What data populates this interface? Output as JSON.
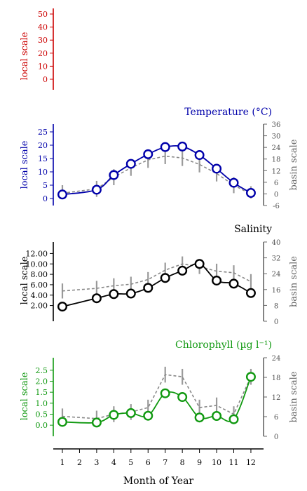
{
  "chart_data": {
    "type": "line",
    "xlabel": "Month of Year",
    "x_ticks": [
      "1",
      "2",
      "3",
      "4",
      "5",
      "6",
      "7",
      "8",
      "9",
      "10",
      "11",
      "12"
    ],
    "y_axis_left_label": "local scale",
    "y_axis_right_label": "basin scale",
    "panels": [
      {
        "id": "p1",
        "title": "",
        "color": "#cc0000",
        "left_ylim": [
          0,
          50
        ],
        "left_ticks": [
          "0",
          "10",
          "20",
          "30",
          "40",
          "50"
        ],
        "right_axis": false,
        "series": []
      },
      {
        "id": "temperature",
        "title": "Temperature (°C)",
        "color": "#0000aa",
        "left_ylim": [
          0,
          25
        ],
        "left_ticks": [
          "0",
          "5",
          "10",
          "15",
          "20",
          "25"
        ],
        "right_ylim": [
          -6,
          36
        ],
        "right_ticks": [
          "-6",
          "0",
          "6",
          "12",
          "18",
          "24",
          "30",
          "36"
        ],
        "series": [
          {
            "x": [
              1,
              3,
              4,
              5,
              6,
              7,
              8,
              9,
              10,
              11,
              12
            ],
            "local": [
              1.5,
              3.3,
              8.8,
              13.0,
              16.6,
              19.3,
              19.5,
              16.3,
              11.2,
              5.9,
              2.1
            ],
            "basin": [
              2.0,
              3.6,
              8.0,
              11.5,
              14.5,
              15.9,
              15.2,
              12.8,
              9.4,
              5.0,
              1.6
            ]
          }
        ]
      },
      {
        "id": "salinity",
        "title": "Salinity",
        "color": "#000000",
        "left_ylim": [
          1,
          13
        ],
        "left_ticks": [
          "2.00",
          "4.00",
          "6.00",
          "8.00",
          "10.00",
          "12.00"
        ],
        "right_ylim": [
          0,
          40
        ],
        "right_ticks": [
          "0",
          "8",
          "16",
          "24",
          "32",
          "40"
        ],
        "series": [
          {
            "x": [
              1,
              3,
              4,
              5,
              6,
              7,
              8,
              9,
              10,
              11,
              12
            ],
            "local": [
              1.8,
              3.4,
              4.2,
              4.3,
              5.4,
              7.3,
              8.7,
              10.0,
              6.8,
              6.2,
              4.4
            ],
            "basin": [
              4.8,
              5.3,
              5.8,
              6.1,
              7.0,
              8.8,
              10.0,
              9.5,
              8.6,
              8.3,
              6.6
            ]
          }
        ]
      },
      {
        "id": "chlorophyll",
        "title": "Chlorophyll (µg l⁻¹)",
        "color": "#119911",
        "left_ylim": [
          -0.25,
          2.75
        ],
        "left_ticks": [
          "0.0",
          "0.5",
          "1.0",
          "1.5",
          "2.0",
          "2.5"
        ],
        "right_ylim": [
          0,
          24
        ],
        "right_ticks": [
          "0",
          "6",
          "12",
          "18",
          "24"
        ],
        "series": [
          {
            "x": [
              1,
              3,
              4,
              5,
              6,
              7,
              8,
              9,
              10,
              11,
              12
            ],
            "local": [
              0.15,
              0.12,
              0.47,
              0.55,
              0.43,
              1.45,
              1.28,
              0.35,
              0.42,
              0.27,
              2.2
            ],
            "basin": [
              0.4,
              0.3,
              0.5,
              0.6,
              0.8,
              2.3,
              2.2,
              0.8,
              0.9,
              0.5,
              2.2
            ]
          }
        ]
      }
    ]
  }
}
